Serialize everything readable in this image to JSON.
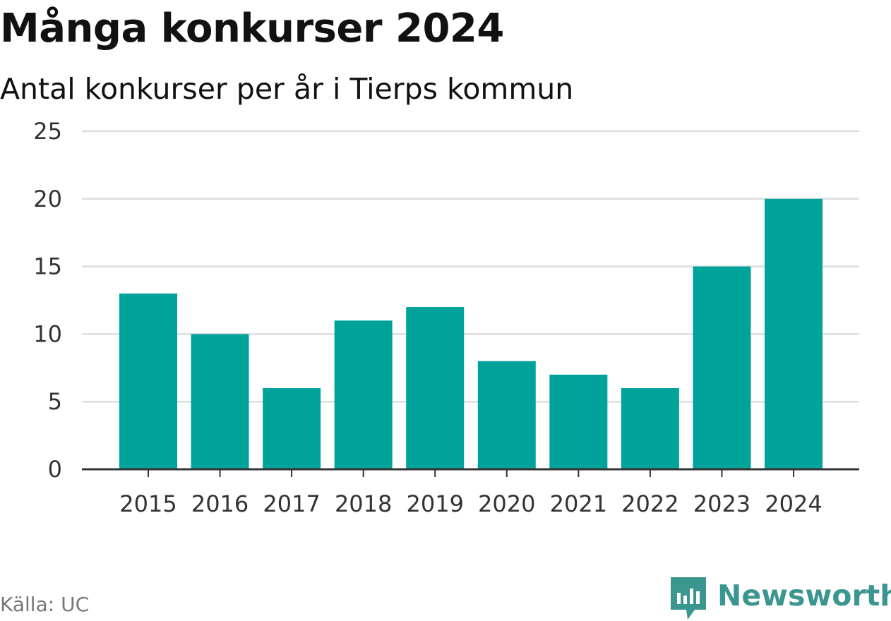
{
  "header": {
    "title": "Många konkurser 2024",
    "subtitle": "Antal konkurser per år i Tierps kommun"
  },
  "footer": {
    "source": "Källa: UC",
    "brand": "Newsworthy"
  },
  "colors": {
    "bar": "#00a39a",
    "grid": "#dddddd",
    "axis": "#333333",
    "brand": "#3a968f",
    "source_text": "#777777"
  },
  "chart_data": {
    "type": "bar",
    "title": "Många konkurser 2024",
    "subtitle": "Antal konkurser per år i Tierps kommun",
    "xlabel": "",
    "ylabel": "",
    "categories": [
      "2015",
      "2016",
      "2017",
      "2018",
      "2019",
      "2020",
      "2021",
      "2022",
      "2023",
      "2024"
    ],
    "values": [
      13,
      10,
      6,
      11,
      12,
      8,
      7,
      6,
      15,
      20
    ],
    "ylim": [
      0,
      25
    ],
    "yticks": [
      0,
      5,
      10,
      15,
      20,
      25
    ],
    "grid": true,
    "legend": "none"
  }
}
